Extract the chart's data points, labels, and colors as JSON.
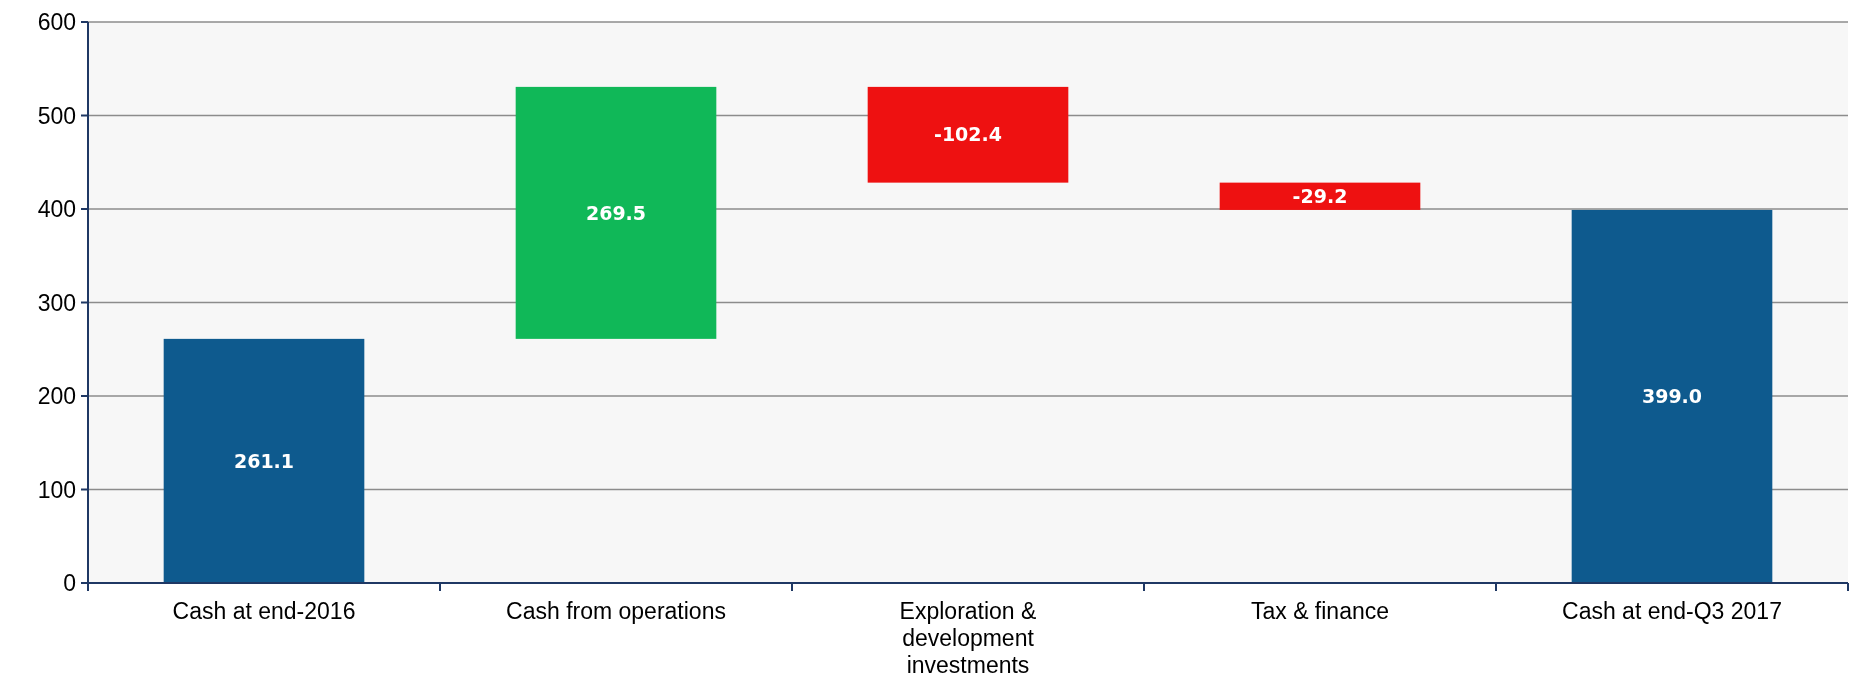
{
  "chart_data": {
    "type": "bar",
    "categories": [
      "Cash at end-2016",
      "Cash from operations",
      "Exploration & development investments",
      "Tax & finance",
      "Cash at end-Q3 2017"
    ],
    "values": [
      261.1,
      269.5,
      -102.4,
      -29.2,
      399.0
    ],
    "base": [
      0,
      261.1,
      530.6,
      428.2,
      0
    ],
    "colors": [
      "#0e5a8e",
      "#10b858",
      "#ee1111",
      "#ee1111",
      "#0e5a8e"
    ],
    "value_labels": [
      "261.1",
      "269.5",
      "-102.4",
      "-29.2",
      "399.0"
    ],
    "ylim": [
      0,
      600
    ],
    "yticks": [
      0,
      100,
      200,
      300,
      400,
      500,
      600
    ],
    "grid": "y"
  }
}
